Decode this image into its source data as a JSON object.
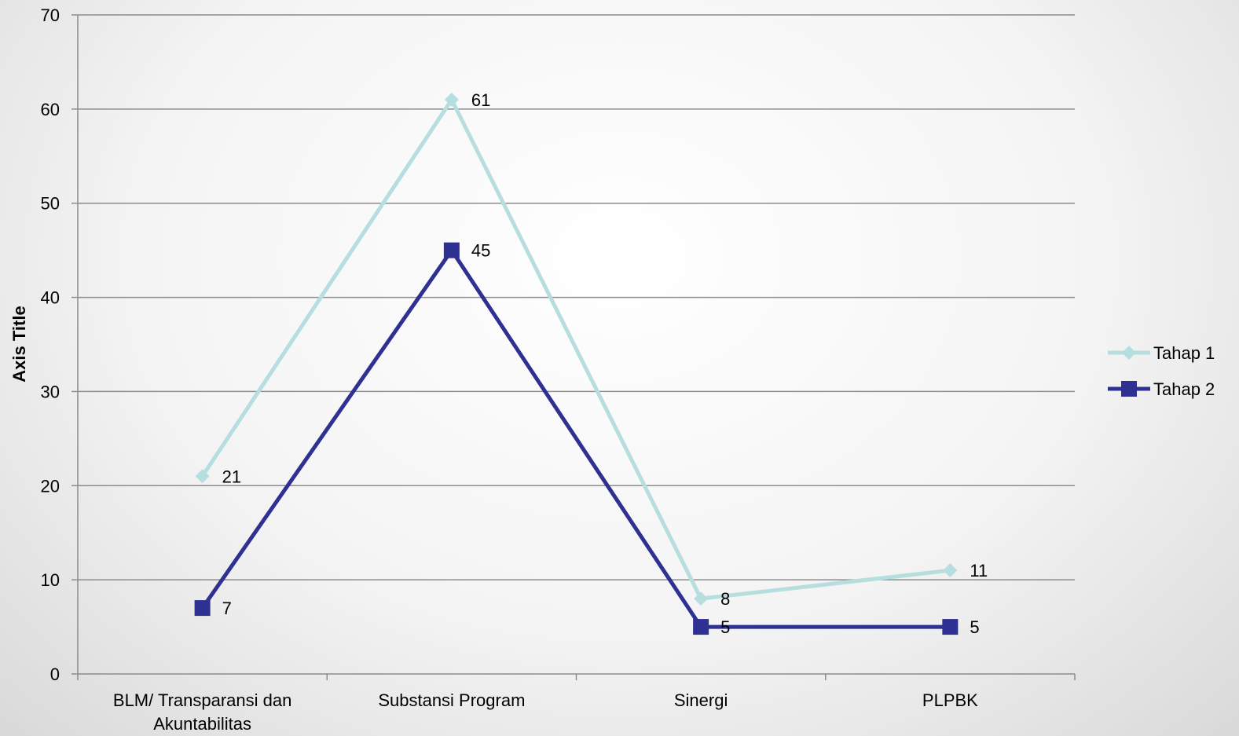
{
  "chart_data": {
    "type": "line",
    "categories": [
      "BLM/ Transparansi dan Akuntabilitas",
      "Substansi Program",
      "Sinergi",
      "PLPBK"
    ],
    "series": [
      {
        "name": "Tahap 1",
        "values": [
          21,
          61,
          8,
          11
        ],
        "color": "#b7dede",
        "marker": "diamond"
      },
      {
        "name": "Tahap 2",
        "values": [
          7,
          45,
          5,
          5
        ],
        "color": "#2e3192",
        "marker": "square"
      }
    ],
    "ylabel": "Axis Title",
    "xlabel": "",
    "ylim": [
      0,
      70
    ],
    "yticks": [
      "0",
      "10",
      "20",
      "30",
      "40",
      "50",
      "60",
      "70"
    ],
    "grid": true,
    "legend_position": "right"
  }
}
